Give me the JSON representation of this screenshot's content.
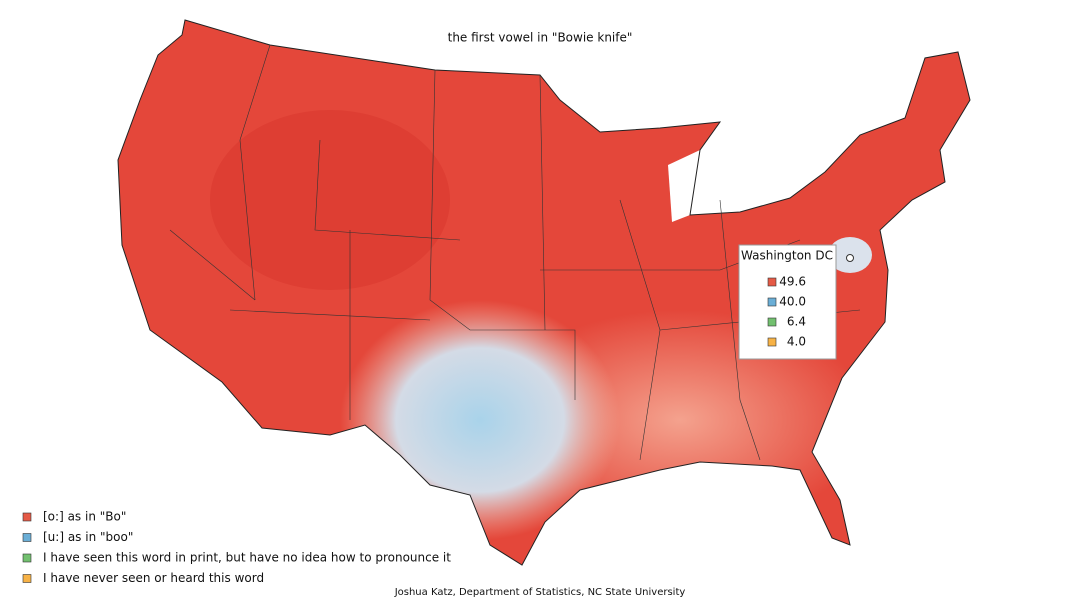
{
  "title": "the first vowel in \"Bowie knife\"",
  "legend": [
    {
      "label": "[o:] as in \"Bo\"",
      "color": "#e55a46"
    },
    {
      "label": "[u:] as in \"boo\"",
      "color": "#6aaed6"
    },
    {
      "label": "I have seen this word in print, but have no idea how to pronounce it",
      "color": "#72c06f"
    },
    {
      "label": "I have never seen or heard this word",
      "color": "#f7b246"
    }
  ],
  "popup": {
    "title": "Washington DC",
    "values": [
      49.6,
      40,
      6.4,
      4
    ],
    "value_labels": [
      "49.6",
      "40.0",
      "6.4",
      "4.0"
    ]
  },
  "credit": "Joshua Katz, Department of Statistics, NC State University"
}
